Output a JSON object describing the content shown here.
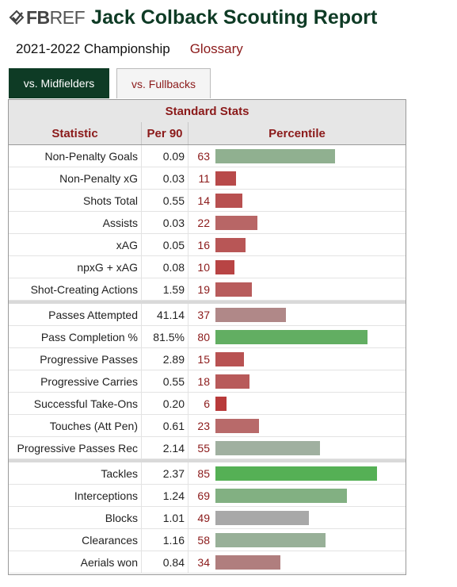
{
  "header": {
    "logo_bold": "FB",
    "logo_light": "REF",
    "title": "Jack Colback Scouting Report"
  },
  "subheader": {
    "season": "2021-2022 Championship",
    "glossary": "Glossary"
  },
  "tabs": [
    {
      "label": "vs. Midfielders",
      "active": true
    },
    {
      "label": "vs. Fullbacks",
      "active": false
    }
  ],
  "table": {
    "caption": "Standard Stats",
    "columns": [
      "Statistic",
      "Per 90",
      "Percentile"
    ],
    "groups": [
      [
        {
          "stat": "Non-Penalty Goals",
          "per90": "0.09",
          "percentile": 63,
          "color": "#90b090"
        },
        {
          "stat": "Non-Penalty xG",
          "per90": "0.03",
          "percentile": 11,
          "color": "#b84a4a"
        },
        {
          "stat": "Shots Total",
          "per90": "0.55",
          "percentile": 14,
          "color": "#b85050"
        },
        {
          "stat": "Assists",
          "per90": "0.03",
          "percentile": 22,
          "color": "#b86666"
        },
        {
          "stat": "xAG",
          "per90": "0.05",
          "percentile": 16,
          "color": "#b85656"
        },
        {
          "stat": "npxG + xAG",
          "per90": "0.08",
          "percentile": 10,
          "color": "#b84444"
        },
        {
          "stat": "Shot-Creating Actions",
          "per90": "1.59",
          "percentile": 19,
          "color": "#b85c5c"
        }
      ],
      [
        {
          "stat": "Passes Attempted",
          "per90": "41.14",
          "percentile": 37,
          "color": "#b08888"
        },
        {
          "stat": "Pass Completion %",
          "per90": "81.5%",
          "percentile": 80,
          "color": "#62ae62"
        },
        {
          "stat": "Progressive Passes",
          "per90": "2.89",
          "percentile": 15,
          "color": "#b85252"
        },
        {
          "stat": "Progressive Carries",
          "per90": "0.55",
          "percentile": 18,
          "color": "#b85a5a"
        },
        {
          "stat": "Successful Take-Ons",
          "per90": "0.20",
          "percentile": 6,
          "color": "#b83a3a"
        },
        {
          "stat": "Touches (Att Pen)",
          "per90": "0.61",
          "percentile": 23,
          "color": "#b86a6a"
        },
        {
          "stat": "Progressive Passes Rec",
          "per90": "2.14",
          "percentile": 55,
          "color": "#a0b0a0"
        }
      ],
      [
        {
          "stat": "Tackles",
          "per90": "2.37",
          "percentile": 85,
          "color": "#55b055"
        },
        {
          "stat": "Interceptions",
          "per90": "1.24",
          "percentile": 69,
          "color": "#82b082"
        },
        {
          "stat": "Blocks",
          "per90": "1.01",
          "percentile": 49,
          "color": "#a8a8a8"
        },
        {
          "stat": "Clearances",
          "per90": "1.16",
          "percentile": 58,
          "color": "#98b098"
        },
        {
          "stat": "Aerials won",
          "per90": "0.84",
          "percentile": 34,
          "color": "#b07e7e"
        }
      ]
    ]
  }
}
